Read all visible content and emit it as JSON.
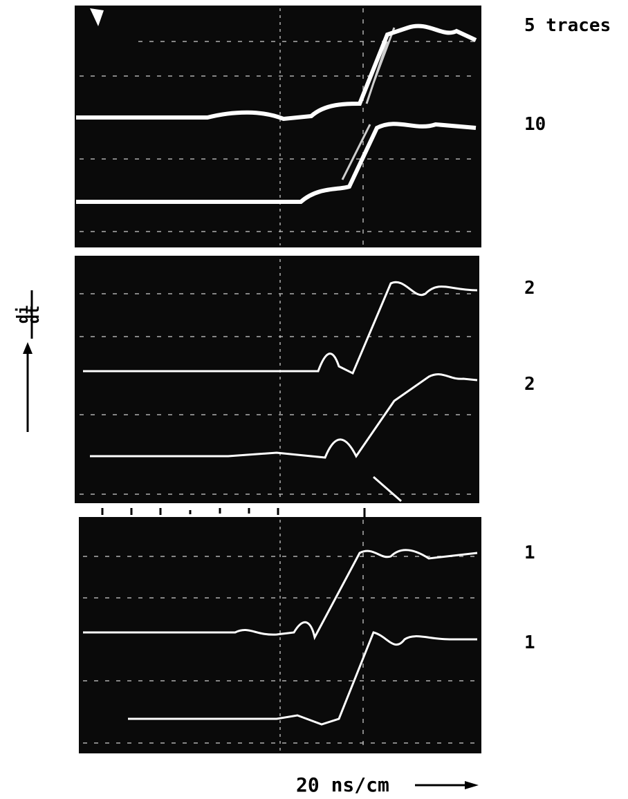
{
  "trace_labels": [
    "5 traces",
    "10",
    "2",
    "2",
    "1",
    "1"
  ],
  "y_axis_label": {
    "numerator": "di",
    "denominator": "dt"
  },
  "x_axis_label": "20 ns/cm"
}
